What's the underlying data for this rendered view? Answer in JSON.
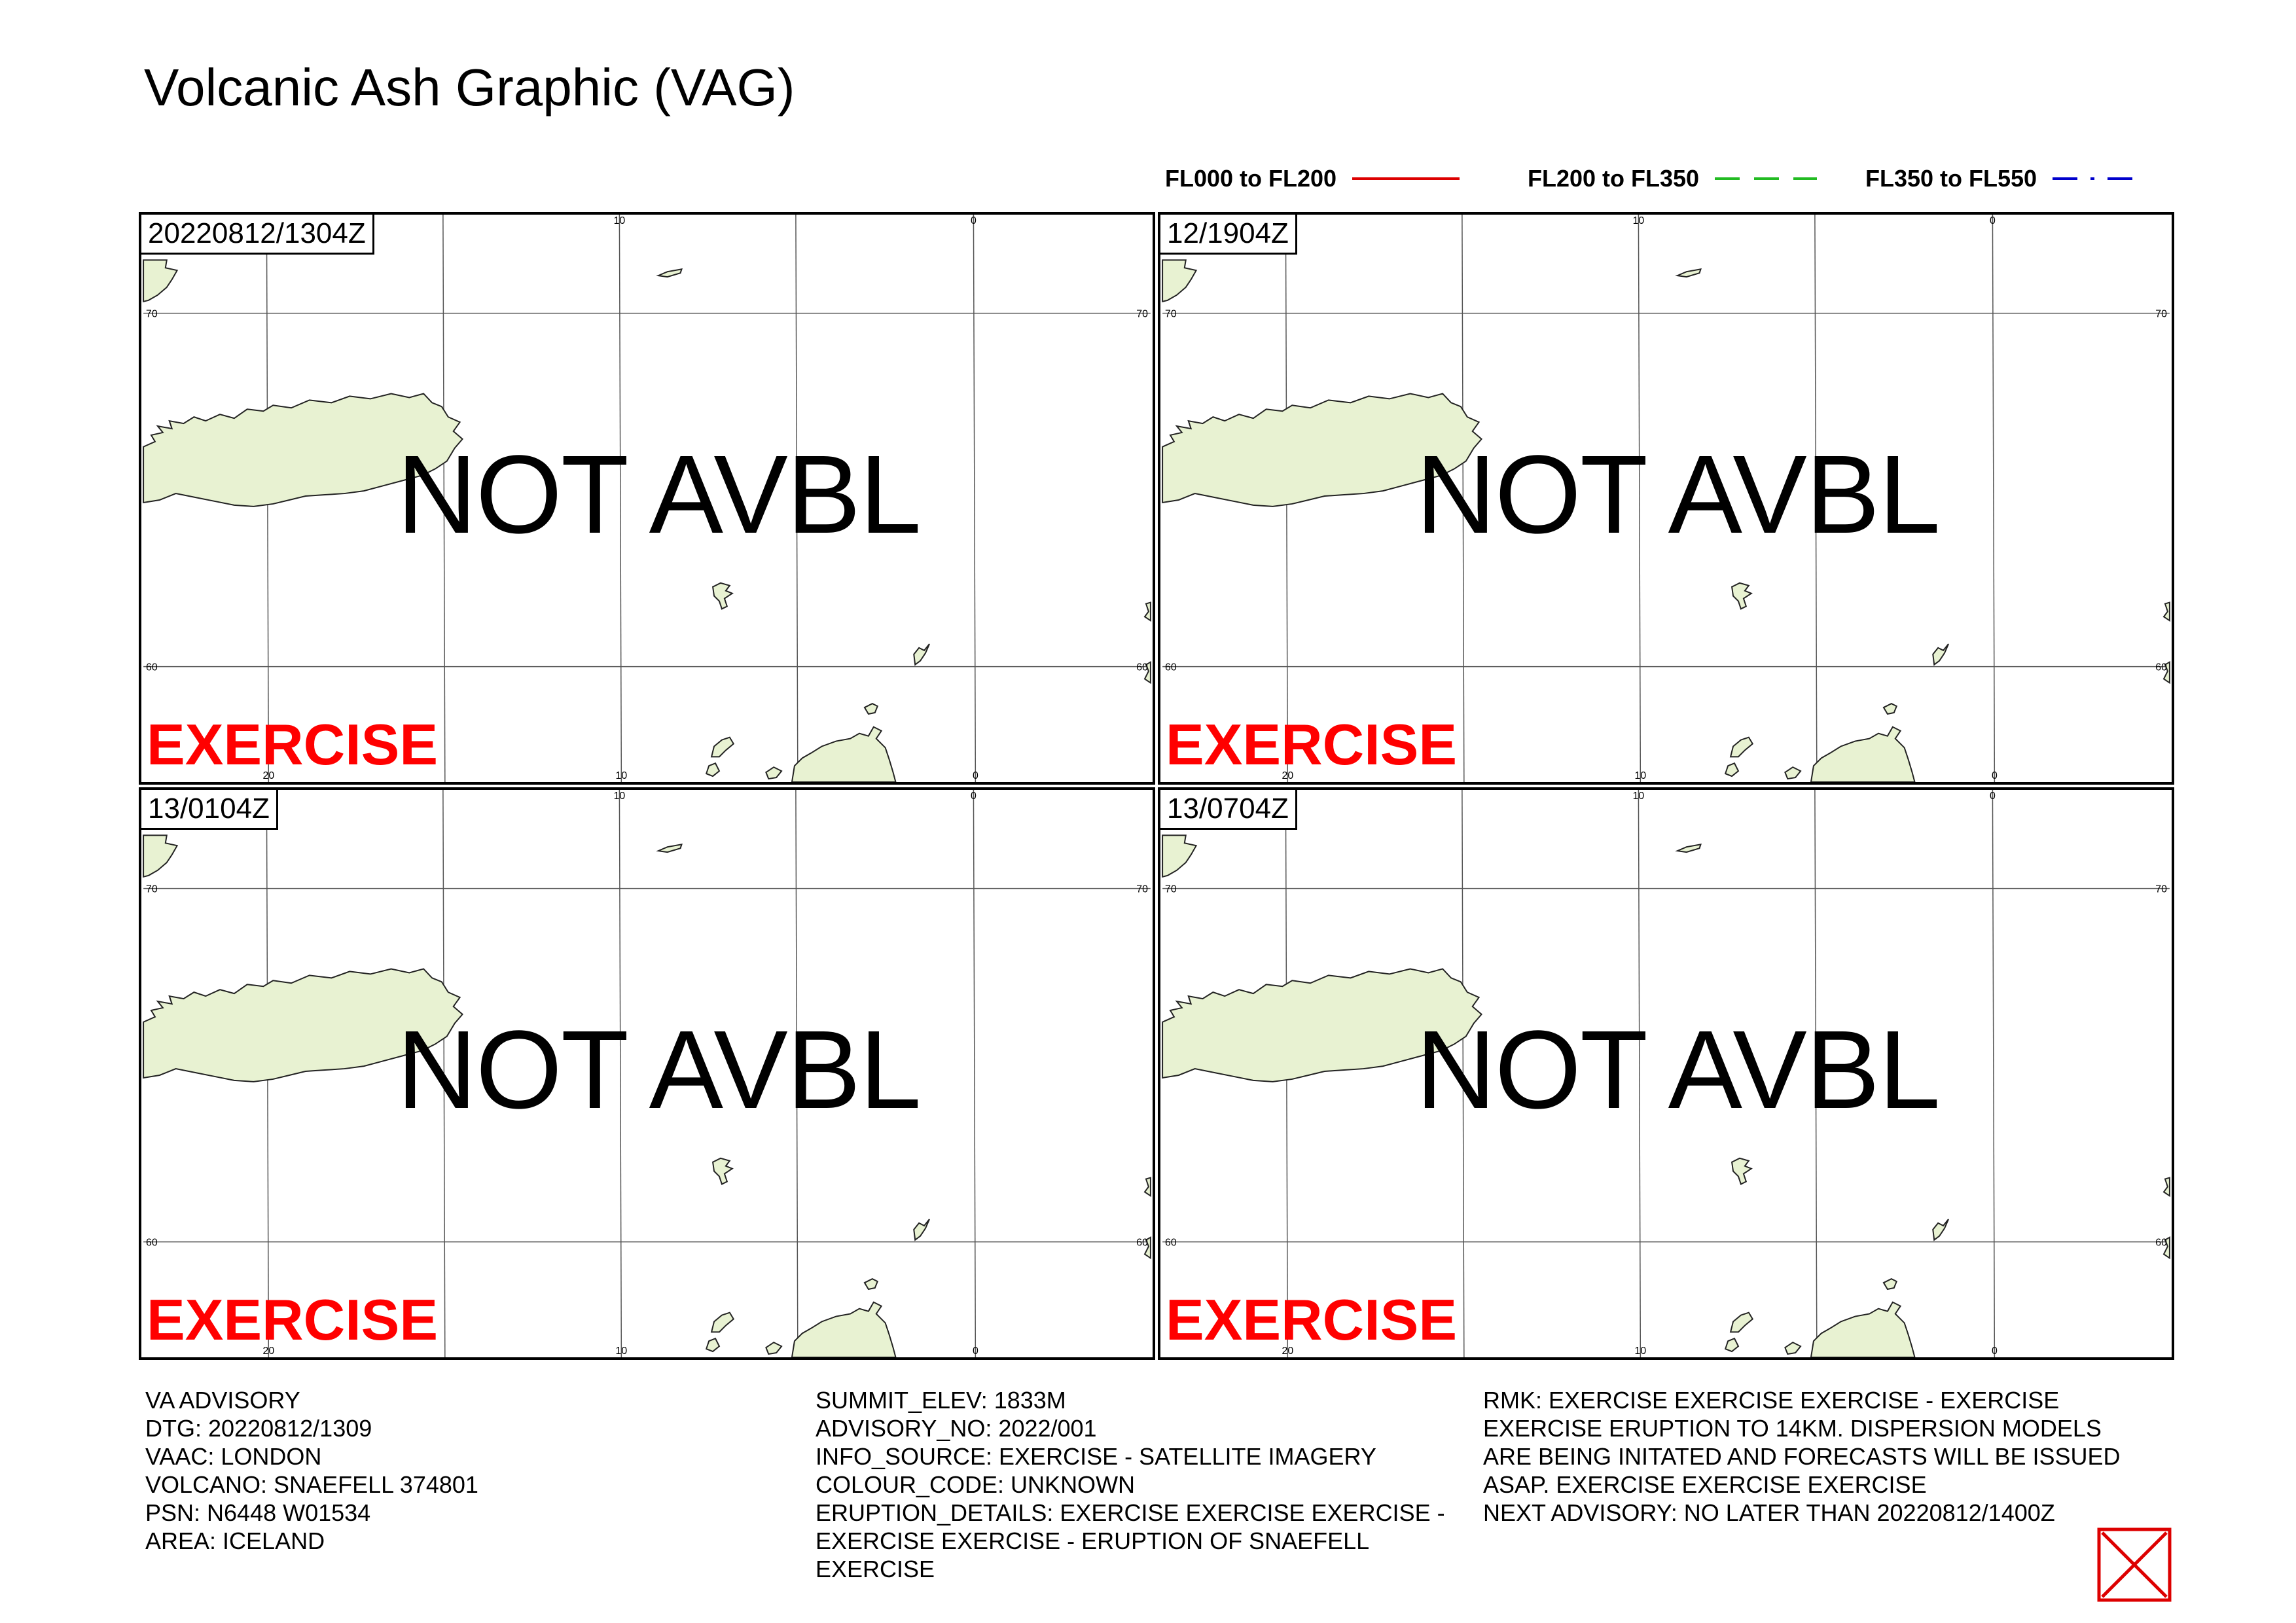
{
  "title": "Volcanic Ash Graphic (VAG)",
  "legend": [
    {
      "label": "FL000 to FL200",
      "color": "#dd0000",
      "style": "solid"
    },
    {
      "label": "FL200 to FL350",
      "color": "#22bb22",
      "style": "dashed"
    },
    {
      "label": "FL350 to FL550",
      "color": "#0000cc",
      "style": "dash-dot"
    }
  ],
  "panels": [
    {
      "timestamp": "20220812/1304Z",
      "status": "NOT AVBL",
      "watermark": "EXERCISE"
    },
    {
      "timestamp": "12/1904Z",
      "status": "NOT AVBL",
      "watermark": "EXERCISE"
    },
    {
      "timestamp": "13/0104Z",
      "status": "NOT AVBL",
      "watermark": "EXERCISE"
    },
    {
      "timestamp": "13/0704Z",
      "status": "NOT AVBL",
      "watermark": "EXERCISE"
    }
  ],
  "map": {
    "land_color": "#e8f2d2",
    "grid_labels": {
      "top_lon": [
        "10",
        "0"
      ],
      "bottom_lon": [
        "20",
        "10",
        "0"
      ],
      "lat_left": [
        "70",
        "60"
      ],
      "lat_right": [
        "70",
        "60"
      ]
    }
  },
  "advisory": {
    "col1": [
      "VA ADVISORY",
      "DTG: 20220812/1309",
      "VAAC: LONDON",
      "VOLCANO: SNAEFELL 374801",
      "PSN: N6448 W01534",
      "AREA: ICELAND"
    ],
    "col2": [
      "SUMMIT_ELEV: 1833M",
      "ADVISORY_NO: 2022/001",
      "INFO_SOURCE: EXERCISE - SATELLITE IMAGERY",
      "COLOUR_CODE: UNKNOWN",
      "ERUPTION_DETAILS: EXERCISE EXERCISE EXERCISE -",
      "EXERCISE EXERCISE - ERUPTION OF SNAEFELL",
      "EXERCISE"
    ],
    "col3": [
      "RMK: EXERCISE EXERCISE EXERCISE - EXERCISE",
      "EXERCISE ERUPTION TO 14KM. DISPERSION MODELS",
      "ARE BEING INITATED AND FORECASTS WILL BE ISSUED",
      "ASAP. EXERCISE EXERCISE EXERCISE",
      "NEXT ADVISORY: NO LATER THAN 20220812/1400Z"
    ]
  },
  "badge_icon": "red-cross-box-icon",
  "badge_color": "#dd0000"
}
